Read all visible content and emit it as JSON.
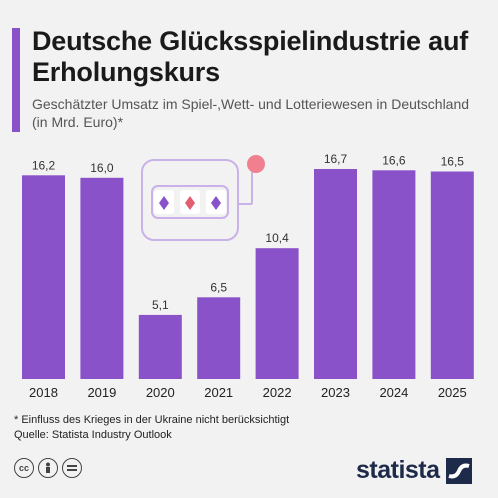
{
  "title": "Deutsche Glücksspielindustrie auf Erholungskurs",
  "subtitle": "Geschätzter Umsatz im Spiel-,Wett- und Lotteriewesen in Deutschland (in Mrd. Euro)*",
  "footnote": {
    "line1": "* Einfluss des Krieges in der Ukraine nicht berücksichtigt",
    "line2": "Quelle: Statista Industry Outlook"
  },
  "brand": "statista",
  "license_icons": [
    "cc-icon",
    "person-icon",
    "equal-icon"
  ],
  "colors": {
    "bar": "#8a52c9",
    "accent": "#8a52c9",
    "background": "#f2f2f2"
  },
  "chart_data": {
    "type": "bar",
    "categories": [
      "2018",
      "2019",
      "2020",
      "2021",
      "2022",
      "2023",
      "2024",
      "2025"
    ],
    "values": [
      16.2,
      16.0,
      5.1,
      6.5,
      10.4,
      16.7,
      16.6,
      16.5
    ],
    "value_labels": [
      "16,2",
      "16,0",
      "5,1",
      "6,5",
      "10,4",
      "16,7",
      "16,6",
      "16,5"
    ],
    "ylim": [
      0,
      16.7
    ],
    "grid": false,
    "legend": "none"
  }
}
